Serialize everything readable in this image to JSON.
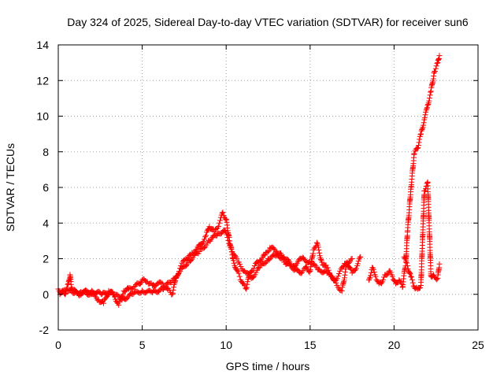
{
  "chart_data": {
    "type": "scatter",
    "title": "Day 324 of 2025, Sidereal Day-to-day VTEC variation (SDTVAR) for receiver sun6",
    "xlabel": "GPS time / hours",
    "ylabel": "SDTVAR / TECUs",
    "xlim": [
      0,
      25
    ],
    "ylim": [
      -2,
      14
    ],
    "xticks": [
      0,
      5,
      10,
      15,
      20,
      25
    ],
    "yticks": [
      -2,
      0,
      2,
      4,
      6,
      8,
      10,
      12,
      14
    ],
    "xtick_labels": [
      "0",
      "5",
      "10",
      "15",
      "20",
      "25"
    ],
    "ytick_labels": [
      "-2",
      "0",
      "2",
      "4",
      "6",
      "8",
      "10",
      "12",
      "14"
    ],
    "grid": true,
    "marker": "+",
    "series_color": "#ff0000",
    "series": [
      {
        "name": "SDTVAR",
        "x": [
          0.0,
          0.2,
          0.4,
          0.6,
          0.7,
          0.8,
          1.0,
          1.3,
          1.6,
          2.0,
          2.4,
          2.7,
          3.0,
          3.3,
          3.6,
          3.9,
          4.2,
          4.5,
          4.8,
          5.0,
          5.3,
          5.6,
          5.9,
          6.2,
          6.5,
          6.8,
          7.0,
          7.3,
          7.6,
          7.9,
          8.2,
          8.5,
          8.8,
          9.0,
          9.3,
          9.6,
          9.8,
          10.0,
          10.2,
          10.4,
          10.6,
          10.8,
          11.0,
          11.2,
          11.4,
          11.7,
          12.0,
          12.3,
          12.6,
          12.9,
          13.2,
          13.5,
          13.8,
          14.1,
          14.4,
          14.7,
          15.0,
          15.2,
          15.4,
          15.7,
          16.0,
          16.3,
          16.6,
          16.9,
          17.2,
          17.5,
          17.8,
          18.0
        ],
        "y": [
          0.3,
          0.1,
          0.0,
          0.6,
          1.1,
          0.2,
          0.1,
          0.0,
          0.1,
          0.0,
          -0.3,
          -0.5,
          0.2,
          0.0,
          -0.6,
          0.2,
          0.3,
          0.4,
          0.6,
          0.8,
          0.7,
          0.5,
          0.6,
          0.6,
          0.3,
          0.0,
          0.9,
          1.6,
          2.0,
          2.2,
          2.5,
          2.8,
          3.3,
          3.8,
          3.5,
          4.0,
          4.6,
          4.2,
          3.0,
          2.0,
          1.4,
          1.0,
          0.6,
          0.3,
          1.2,
          1.6,
          1.9,
          2.2,
          2.6,
          2.5,
          2.3,
          1.8,
          1.6,
          1.4,
          1.2,
          1.5,
          1.3,
          2.5,
          2.9,
          1.8,
          1.5,
          1.0,
          0.5,
          0.2,
          1.8,
          1.2,
          1.6,
          2.1
        ]
      },
      {
        "name": "SDTVAR",
        "x": [
          0.1,
          0.5,
          0.9,
          1.4,
          2.0,
          2.6,
          3.2,
          3.8,
          4.4,
          5.0,
          5.6,
          6.2,
          6.8,
          7.2,
          7.8,
          8.4,
          9.0,
          9.5,
          9.9,
          10.3,
          10.7,
          11.1,
          11.5,
          12.0,
          12.5,
          13.0,
          13.5,
          14.0,
          14.5,
          15.0,
          15.5,
          16.0,
          16.5,
          17.0,
          17.5
        ],
        "y": [
          0.0,
          0.3,
          0.2,
          0.1,
          0.2,
          0.0,
          0.1,
          -0.3,
          0.0,
          0.2,
          0.1,
          0.3,
          0.8,
          1.2,
          1.9,
          2.4,
          3.0,
          3.4,
          3.6,
          2.6,
          1.8,
          1.3,
          0.9,
          1.5,
          2.0,
          2.2,
          2.0,
          1.6,
          2.0,
          1.8,
          1.4,
          1.2,
          0.8,
          1.6,
          2.0
        ]
      },
      {
        "name": "SDTVAR",
        "x": [
          18.5,
          18.7,
          18.9,
          19.1,
          19.3,
          19.5,
          19.7,
          19.9,
          20.1,
          20.3,
          20.5,
          20.7,
          20.8,
          21.0,
          21.2,
          21.4,
          21.6,
          21.8,
          22.0,
          22.2,
          22.4,
          22.6,
          22.7
        ],
        "y": [
          0.8,
          1.5,
          1.0,
          0.6,
          0.7,
          1.1,
          1.3,
          1.0,
          0.6,
          0.8,
          0.4,
          1.8,
          3.5,
          5.9,
          7.9,
          8.2,
          9.0,
          9.8,
          10.6,
          11.4,
          12.5,
          13.0,
          13.4
        ]
      },
      {
        "name": "SDTVAR",
        "x": [
          20.6,
          20.8,
          21.0,
          21.2,
          21.4,
          21.6,
          21.8,
          22.0,
          22.2,
          22.4,
          22.6,
          22.7
        ],
        "y": [
          2.1,
          1.6,
          1.0,
          0.4,
          0.3,
          0.5,
          5.8,
          6.3,
          1.0,
          1.0,
          0.9,
          1.7
        ]
      }
    ]
  }
}
